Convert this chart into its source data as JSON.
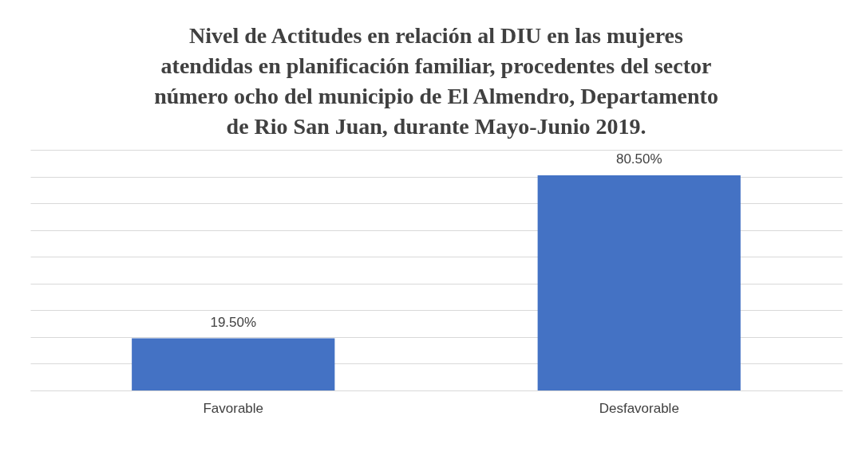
{
  "chart_data": {
    "type": "bar",
    "title": [
      "Nivel de Actitudes en relación al DIU en las mujeres",
      "atendidas en planificación familiar, procedentes del sector",
      "número ocho del municipio de El Almendro, Departamento",
      "de Rio San Juan, durante Mayo-Junio 2019."
    ],
    "categories": [
      "Favorable",
      "Desfavorable"
    ],
    "values": [
      19.5,
      80.5
    ],
    "value_labels": [
      "19.50%",
      "80.50%"
    ],
    "color": "#4472c4",
    "tick_labels": "x",
    "grid": "y"
  }
}
